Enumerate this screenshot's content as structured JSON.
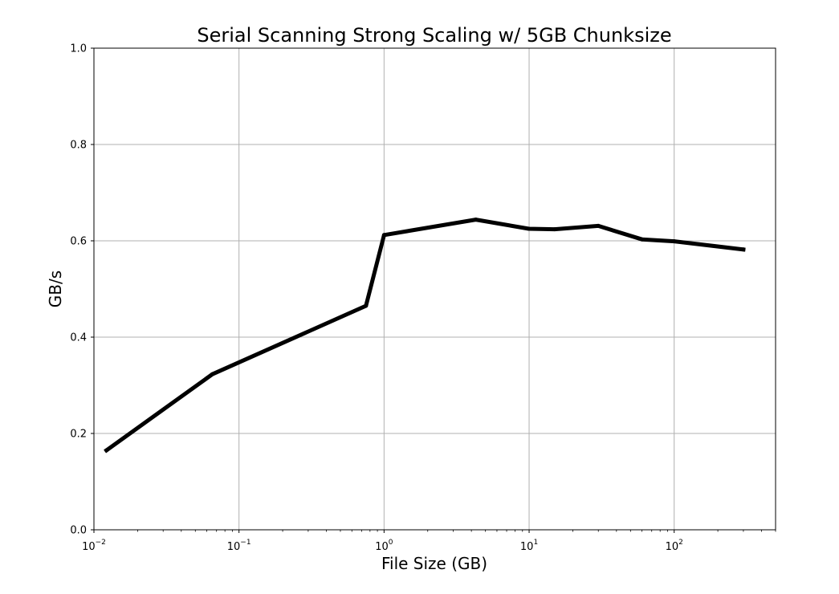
{
  "chart_data": {
    "type": "line",
    "title": "Serial Scanning Strong Scaling w/ 5GB Chunksize",
    "xlabel": "File Size (GB)",
    "ylabel": "GB/s",
    "xscale": "log",
    "xlim": [
      0.01,
      500
    ],
    "ylim": [
      0.0,
      1.0
    ],
    "grid": true,
    "line_color": "#000000",
    "grid_color": "#b0b0b0",
    "x_ticks": [
      {
        "base": "10",
        "exp": "−2",
        "value": 0.01
      },
      {
        "base": "10",
        "exp": "−1",
        "value": 0.1
      },
      {
        "base": "10",
        "exp": "0",
        "value": 1
      },
      {
        "base": "10",
        "exp": "1",
        "value": 10
      },
      {
        "base": "10",
        "exp": "2",
        "value": 100
      }
    ],
    "y_ticks": [
      "0.0",
      "0.2",
      "0.4",
      "0.6",
      "0.8",
      "1.0"
    ],
    "series": [
      {
        "x": [
          0.0122,
          0.0655,
          0.75,
          1.0,
          4.29,
          9.96,
          15.0,
          30.0,
          60.0,
          100.0,
          300.0
        ],
        "y": [
          0.165,
          0.323,
          0.465,
          0.612,
          0.644,
          0.625,
          0.624,
          0.631,
          0.603,
          0.599,
          0.582
        ]
      }
    ]
  }
}
